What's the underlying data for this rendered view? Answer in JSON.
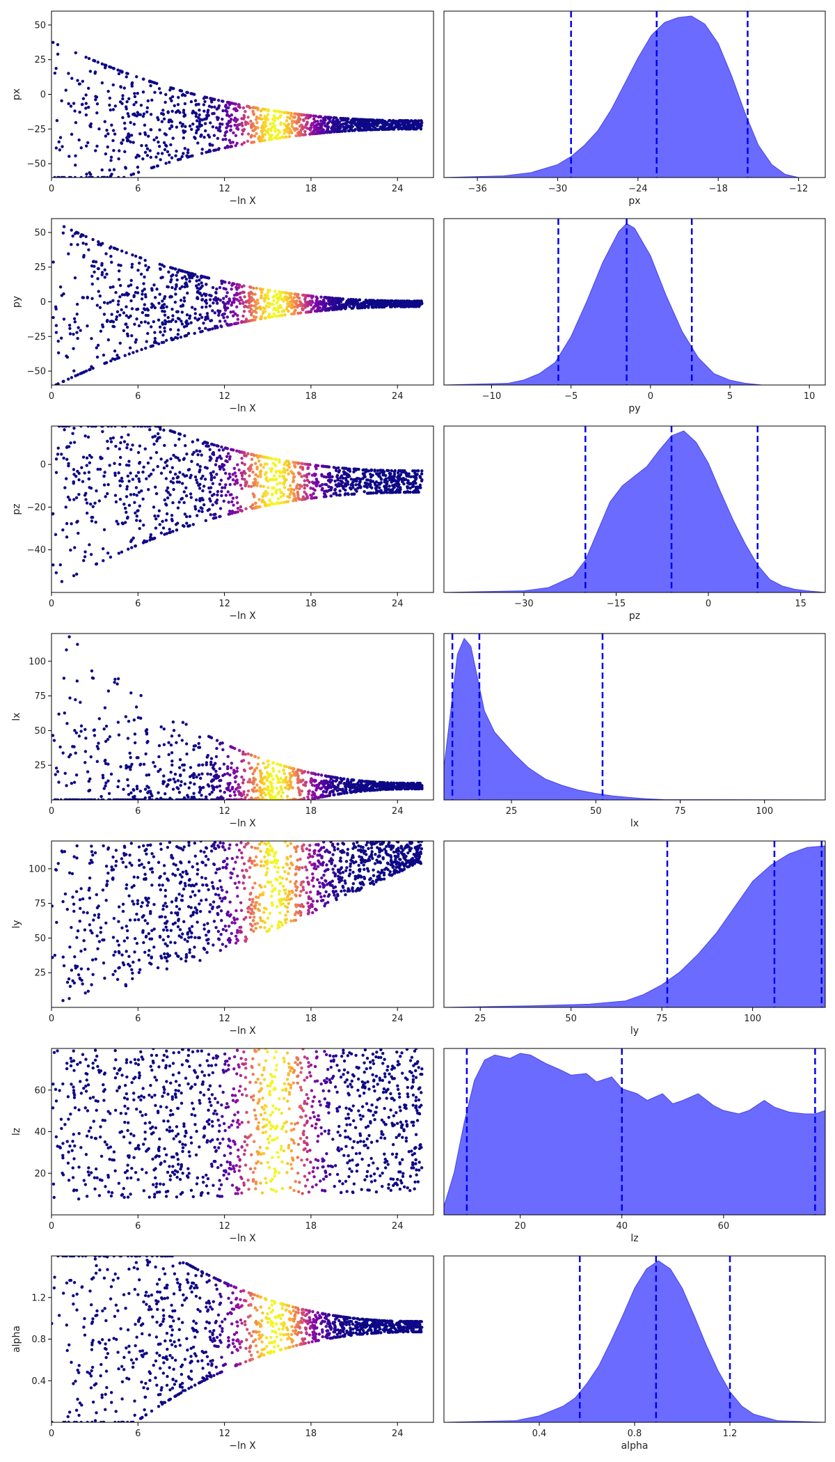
{
  "chart_data": [
    {
      "type": "scatter",
      "xlabel": "−ln X",
      "ylabel": "px",
      "xlim": [
        0,
        26.5
      ],
      "ylim": [
        -60,
        60
      ],
      "xticks": [
        0,
        6,
        12,
        18,
        24
      ],
      "xtick_labels": [
        "0",
        "6",
        "12",
        "18",
        "24"
      ],
      "yticks": [
        -50,
        -25,
        0,
        25,
        50
      ],
      "ytick_labels": [
        "−50",
        "−25",
        "0",
        "25",
        "50"
      ],
      "converge": {
        "center": -22,
        "spread_start": 60,
        "spread_end": 3,
        "x_end": 26.5
      },
      "colormap": "plasma",
      "peak_x": 15.5
    },
    {
      "type": "area",
      "xlabel": "px",
      "xlim": [
        -38.5,
        -10
      ],
      "xticks": [
        -36,
        -30,
        -24,
        -18,
        -12
      ],
      "xtick_labels": [
        "−36",
        "−30",
        "−24",
        "−18",
        "−12"
      ],
      "quantile_lines": [
        -29,
        -22.6,
        -15.8
      ],
      "density": {
        "x": [
          -38.5,
          -34,
          -32,
          -30,
          -29,
          -28,
          -27,
          -26,
          -25,
          -24,
          -23,
          -22,
          -21,
          -20,
          -19,
          -18,
          -17,
          -16,
          -15,
          -14,
          -13,
          -12,
          -10
        ],
        "y": [
          0,
          0.01,
          0.03,
          0.08,
          0.13,
          0.2,
          0.29,
          0.42,
          0.58,
          0.74,
          0.88,
          0.96,
          0.99,
          1.0,
          0.95,
          0.83,
          0.63,
          0.4,
          0.2,
          0.08,
          0.02,
          0.0,
          0
        ]
      },
      "color": "#5b5bff"
    },
    {
      "type": "scatter",
      "xlabel": "−ln X",
      "ylabel": "py",
      "xlim": [
        0,
        26.5
      ],
      "ylim": [
        -60,
        60
      ],
      "xticks": [
        0,
        6,
        12,
        18,
        24
      ],
      "xtick_labels": [
        "0",
        "6",
        "12",
        "18",
        "24"
      ],
      "yticks": [
        -50,
        -25,
        0,
        25,
        50
      ],
      "ytick_labels": [
        "−50",
        "−25",
        "0",
        "25",
        "50"
      ],
      "converge": {
        "center": -1.5,
        "spread_start": 60,
        "spread_end": 2,
        "x_end": 26.5
      },
      "colormap": "plasma",
      "peak_x": 15.5
    },
    {
      "type": "area",
      "xlabel": "py",
      "xlim": [
        -13,
        11
      ],
      "xticks": [
        -10,
        -5,
        0,
        5,
        10
      ],
      "xtick_labels": [
        "−10",
        "−5",
        "0",
        "5",
        "10"
      ],
      "quantile_lines": [
        -5.8,
        -1.5,
        2.6
      ],
      "density": {
        "x": [
          -13,
          -9,
          -8,
          -7,
          -6,
          -5,
          -4,
          -3,
          -2,
          -1.5,
          -1,
          0,
          1,
          2,
          3,
          4,
          5,
          6,
          7,
          11
        ],
        "y": [
          0,
          0.01,
          0.03,
          0.07,
          0.14,
          0.3,
          0.52,
          0.76,
          0.95,
          1.0,
          0.97,
          0.8,
          0.55,
          0.33,
          0.17,
          0.07,
          0.03,
          0.01,
          0,
          0
        ]
      },
      "color": "#5b5bff"
    },
    {
      "type": "scatter",
      "xlabel": "−ln X",
      "ylabel": "pz",
      "xlim": [
        0,
        26.5
      ],
      "ylim": [
        -60,
        18
      ],
      "xticks": [
        0,
        6,
        12,
        18,
        24
      ],
      "xtick_labels": [
        "0",
        "6",
        "12",
        "18",
        "24"
      ],
      "yticks": [
        -40,
        -20,
        0
      ],
      "ytick_labels": [
        "−40",
        "−20",
        "0"
      ],
      "converge": {
        "center": -8,
        "spread_start": 50,
        "spread_end": 5,
        "x_end": 26.5
      },
      "colormap": "plasma",
      "peak_x": 15.5
    },
    {
      "type": "area",
      "xlabel": "pz",
      "xlim": [
        -43,
        19
      ],
      "xticks": [
        -30,
        -15,
        0,
        15
      ],
      "xtick_labels": [
        "−30",
        "−15",
        "0",
        "15"
      ],
      "quantile_lines": [
        -20,
        -6,
        8
      ],
      "density": {
        "x": [
          -43,
          -30,
          -26,
          -22,
          -20,
          -18,
          -16,
          -14,
          -12,
          -10,
          -8,
          -6,
          -4,
          -2,
          0,
          2,
          4,
          6,
          8,
          10,
          12,
          14,
          16,
          19
        ],
        "y": [
          0,
          0.01,
          0.03,
          0.1,
          0.2,
          0.38,
          0.56,
          0.66,
          0.72,
          0.78,
          0.88,
          0.97,
          1.0,
          0.93,
          0.8,
          0.62,
          0.45,
          0.3,
          0.17,
          0.08,
          0.04,
          0.02,
          0.01,
          0
        ]
      },
      "color": "#5b5bff"
    },
    {
      "type": "scatter",
      "xlabel": "−ln X",
      "ylabel": "lx",
      "xlim": [
        0,
        26.5
      ],
      "ylim": [
        0,
        120
      ],
      "xticks": [
        0,
        6,
        12,
        18,
        24
      ],
      "xtick_labels": [
        "0",
        "6",
        "12",
        "18",
        "24"
      ],
      "yticks": [
        25,
        50,
        75,
        100
      ],
      "ytick_labels": [
        "25",
        "50",
        "75",
        "100"
      ],
      "converge": {
        "center": 10,
        "spread_start": 120,
        "spread_end": 2,
        "x_end": 26.5
      },
      "colormap": "plasma",
      "peak_x": 15.5
    },
    {
      "type": "area",
      "xlabel": "lx",
      "xlim": [
        5,
        118
      ],
      "xticks": [
        25,
        50,
        75,
        100
      ],
      "xtick_labels": [
        "25",
        "50",
        "75",
        "100"
      ],
      "quantile_lines": [
        7.5,
        15.5,
        52
      ],
      "density": {
        "x": [
          5,
          7,
          9,
          11,
          13,
          15,
          17,
          20,
          23,
          26,
          30,
          35,
          40,
          45,
          50,
          55,
          60,
          65,
          70,
          118
        ],
        "y": [
          0.2,
          0.55,
          0.9,
          1.0,
          0.95,
          0.75,
          0.55,
          0.42,
          0.35,
          0.28,
          0.2,
          0.13,
          0.09,
          0.06,
          0.04,
          0.025,
          0.015,
          0.007,
          0.002,
          0
        ]
      },
      "color": "#5b5bff"
    },
    {
      "type": "scatter",
      "xlabel": "−ln X",
      "ylabel": "ly",
      "xlim": [
        0,
        26.5
      ],
      "ylim": [
        0,
        120
      ],
      "xticks": [
        0,
        6,
        12,
        18,
        24
      ],
      "xtick_labels": [
        "0",
        "6",
        "12",
        "18",
        "24"
      ],
      "yticks": [
        25,
        50,
        75,
        100
      ],
      "ytick_labels": [
        "25",
        "50",
        "75",
        "100"
      ],
      "colormap": "plasma",
      "peak_x": 15.5
    },
    {
      "type": "area",
      "xlabel": "ly",
      "xlim": [
        15,
        120
      ],
      "xticks": [
        25,
        50,
        75,
        100
      ],
      "xtick_labels": [
        "25",
        "50",
        "75",
        "100"
      ],
      "quantile_lines": [
        76.5,
        106,
        119
      ],
      "density": {
        "x": [
          15,
          40,
          55,
          65,
          70,
          75,
          80,
          85,
          90,
          95,
          100,
          105,
          110,
          115,
          120
        ],
        "y": [
          0,
          0.01,
          0.02,
          0.04,
          0.08,
          0.14,
          0.22,
          0.33,
          0.46,
          0.62,
          0.78,
          0.88,
          0.95,
          0.99,
          1.0
        ]
      },
      "color": "#5b5bff"
    },
    {
      "type": "scatter",
      "xlabel": "−ln X",
      "ylabel": "lz",
      "xlim": [
        0,
        26.5
      ],
      "ylim": [
        0,
        80
      ],
      "xticks": [
        0,
        6,
        12,
        18,
        24
      ],
      "xtick_labels": [
        "0",
        "6",
        "12",
        "18",
        "24"
      ],
      "yticks": [
        20,
        40,
        60
      ],
      "ytick_labels": [
        "20",
        "40",
        "60"
      ],
      "colormap": "plasma",
      "peak_x": 15.5
    },
    {
      "type": "area",
      "xlabel": "lz",
      "xlim": [
        5,
        80
      ],
      "xticks": [
        20,
        40,
        60
      ],
      "xtick_labels": [
        "20",
        "40",
        "60"
      ],
      "quantile_lines": [
        9.5,
        40,
        78
      ],
      "density": {
        "x": [
          5,
          7,
          9,
          11,
          13,
          15,
          18,
          20,
          22,
          25,
          28,
          30,
          33,
          35,
          38,
          40,
          43,
          45,
          48,
          50,
          52,
          55,
          58,
          60,
          63,
          65,
          68,
          70,
          73,
          76,
          78,
          80
        ],
        "y": [
          0.05,
          0.25,
          0.55,
          0.8,
          0.92,
          0.95,
          0.93,
          0.96,
          0.95,
          0.9,
          0.86,
          0.83,
          0.84,
          0.79,
          0.82,
          0.75,
          0.72,
          0.68,
          0.72,
          0.66,
          0.68,
          0.72,
          0.65,
          0.62,
          0.6,
          0.62,
          0.68,
          0.64,
          0.61,
          0.6,
          0.6,
          0.62
        ]
      },
      "color": "#5b5bff"
    },
    {
      "type": "scatter",
      "xlabel": "−ln X",
      "ylabel": "alpha",
      "xlim": [
        0,
        26.5
      ],
      "ylim": [
        0,
        1.6
      ],
      "xticks": [
        0,
        6,
        12,
        18,
        24
      ],
      "xtick_labels": [
        "0",
        "6",
        "12",
        "18",
        "24"
      ],
      "yticks": [
        0.4,
        0.8,
        1.2
      ],
      "ytick_labels": [
        "0.4",
        "0.8",
        "1.2"
      ],
      "converge": {
        "center": 0.92,
        "spread_start": 1.6,
        "spread_end": 0.05,
        "x_end": 26.5
      },
      "colormap": "plasma",
      "peak_x": 15.5
    },
    {
      "type": "area",
      "xlabel": "alpha",
      "xlim": [
        0,
        1.6
      ],
      "xticks": [
        0.4,
        0.8,
        1.2
      ],
      "xtick_labels": [
        "0.4",
        "0.8",
        "1.2"
      ],
      "quantile_lines": [
        0.57,
        0.89,
        1.2
      ],
      "density": {
        "x": [
          0,
          0.3,
          0.4,
          0.5,
          0.55,
          0.6,
          0.65,
          0.7,
          0.75,
          0.8,
          0.85,
          0.9,
          0.95,
          1.0,
          1.05,
          1.1,
          1.15,
          1.2,
          1.25,
          1.3,
          1.4,
          1.6
        ],
        "y": [
          0,
          0.01,
          0.04,
          0.1,
          0.15,
          0.24,
          0.35,
          0.5,
          0.66,
          0.83,
          0.95,
          1.0,
          0.95,
          0.83,
          0.66,
          0.48,
          0.32,
          0.19,
          0.1,
          0.05,
          0.01,
          0
        ]
      },
      "color": "#5b5bff"
    }
  ]
}
